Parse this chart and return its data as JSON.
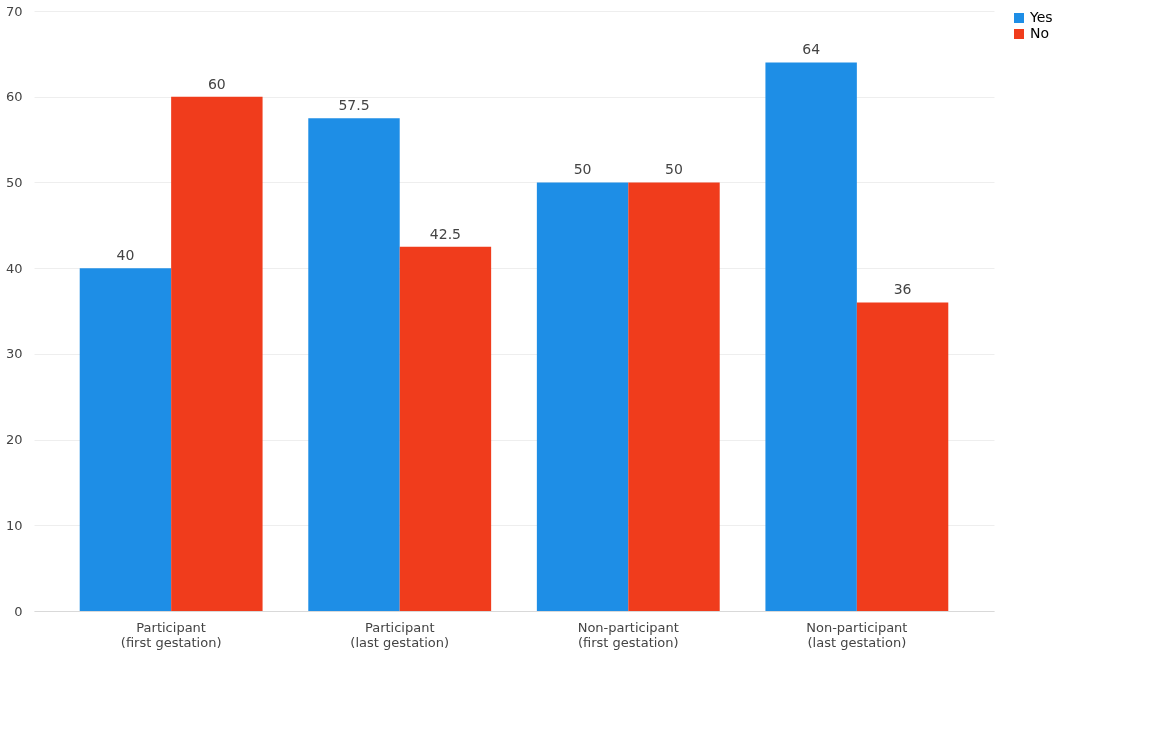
{
  "chart_data": {
    "type": "bar",
    "categories": [
      "Participant (first gestation)",
      "Participant (last gestation)",
      "Non-participant (first gestation)",
      "Non-participant (last gestation)"
    ],
    "series": [
      {
        "name": "Yes",
        "color": "#1e8ee6",
        "values": [
          40,
          57.5,
          50,
          64
        ]
      },
      {
        "name": "No",
        "color": "#f03c1c",
        "values": [
          60,
          42.5,
          50,
          36
        ]
      }
    ],
    "ylim": [
      0,
      70
    ],
    "yticks": [
      0,
      10,
      20,
      30,
      40,
      50,
      60,
      70
    ],
    "grid": "y",
    "legend": "right",
    "data_labels": true
  }
}
